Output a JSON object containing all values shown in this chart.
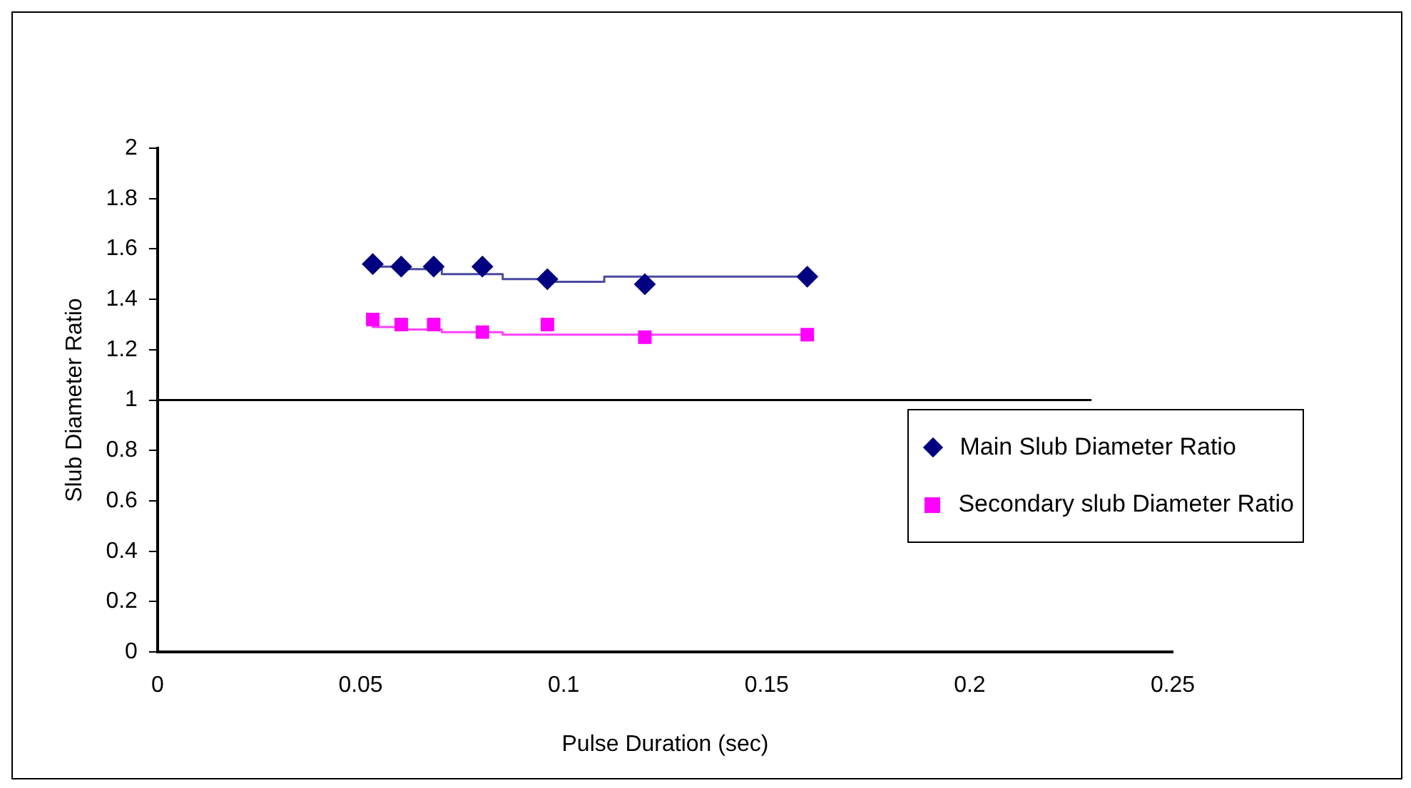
{
  "chart_data": {
    "type": "scatter",
    "xlabel": "Pulse Duration (sec)",
    "ylabel": "Slub Diameter Ratio",
    "xlim": [
      0,
      0.25
    ],
    "xticks": [
      0,
      0.05,
      0.1,
      0.15,
      0.2,
      0.25
    ],
    "ylim": [
      0,
      2
    ],
    "yticks": [
      0,
      0.2,
      0.4,
      0.6,
      0.8,
      1,
      1.2,
      1.4,
      1.6,
      1.8,
      2
    ],
    "grid": false,
    "legend": "right",
    "series": [
      {
        "name": "Main Slub Diameter Ratio",
        "marker": "diamond",
        "color": "#000080",
        "x": [
          0.053,
          0.06,
          0.068,
          0.08,
          0.096,
          0.12,
          0.16
        ],
        "values": [
          1.54,
          1.53,
          1.53,
          1.53,
          1.48,
          1.46,
          1.49
        ]
      },
      {
        "name": "Secondary slub Diameter Ratio",
        "marker": "square",
        "color": "#ff00ff",
        "x": [
          0.053,
          0.06,
          0.068,
          0.08,
          0.096,
          0.12,
          0.16
        ],
        "values": [
          1.32,
          1.3,
          1.3,
          1.27,
          1.3,
          1.25,
          1.26
        ]
      },
      {
        "type": "step",
        "marker": "none",
        "color": "#4a4aa0",
        "x": [
          0.053,
          0.06,
          0.07,
          0.085,
          0.096,
          0.11,
          0.151,
          0.16
        ],
        "values": [
          1.53,
          1.53,
          1.52,
          1.5,
          1.48,
          1.47,
          1.49,
          1.49
        ]
      },
      {
        "type": "step",
        "marker": "none",
        "color": "#ff40ff",
        "x": [
          0.053,
          0.06,
          0.07,
          0.085,
          0.101,
          0.16
        ],
        "values": [
          1.31,
          1.29,
          1.28,
          1.27,
          1.26,
          1.26
        ]
      },
      {
        "type": "line",
        "marker": "none",
        "color": "#000000",
        "x": [
          0,
          0.23
        ],
        "values": [
          1,
          1
        ]
      }
    ]
  }
}
